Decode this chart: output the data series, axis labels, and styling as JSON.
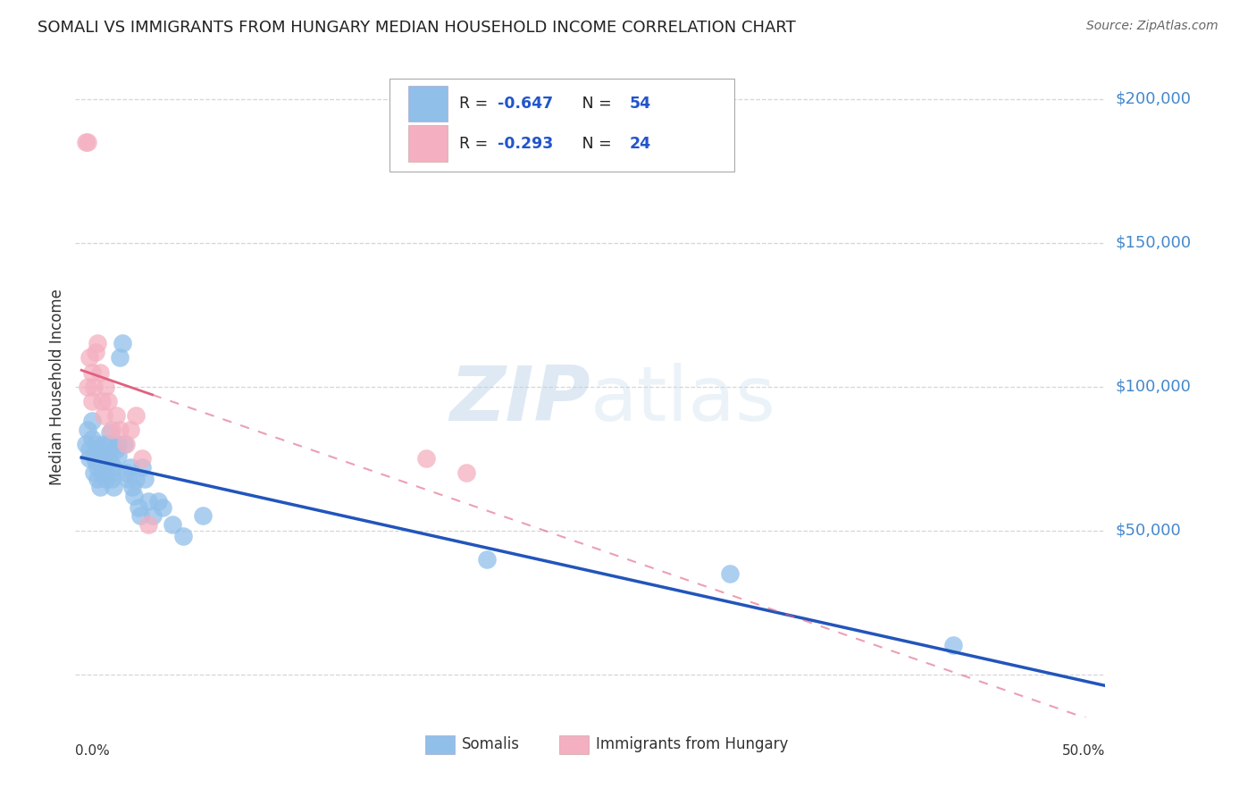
{
  "title": "SOMALI VS IMMIGRANTS FROM HUNGARY MEDIAN HOUSEHOLD INCOME CORRELATION CHART",
  "source": "Source: ZipAtlas.com",
  "ylabel": "Median Household Income",
  "yticks": [
    0,
    50000,
    100000,
    150000,
    200000
  ],
  "ytick_labels": [
    "",
    "$50,000",
    "$100,000",
    "$150,000",
    "$200,000"
  ],
  "ymax": 215000,
  "ymin": -15000,
  "xmax": 0.505,
  "xmin": -0.003,
  "legend_somali_label": "R = -0.647   N = 54",
  "legend_hungary_label": "R = -0.293   N = 24",
  "somali_color": "#90bfea",
  "hungary_color": "#f4afc0",
  "regression_blue": "#2255bb",
  "regression_pink": "#e06080",
  "watermark_zip": "ZIP",
  "watermark_atlas": "atlas",
  "background_color": "#ffffff",
  "grid_color": "#cccccc",
  "somali_x": [
    0.002,
    0.003,
    0.004,
    0.004,
    0.005,
    0.005,
    0.006,
    0.006,
    0.007,
    0.007,
    0.008,
    0.008,
    0.009,
    0.009,
    0.01,
    0.01,
    0.011,
    0.011,
    0.012,
    0.012,
    0.013,
    0.013,
    0.014,
    0.014,
    0.015,
    0.015,
    0.016,
    0.016,
    0.017,
    0.018,
    0.018,
    0.019,
    0.02,
    0.021,
    0.022,
    0.023,
    0.024,
    0.025,
    0.026,
    0.027,
    0.028,
    0.029,
    0.03,
    0.031,
    0.033,
    0.035,
    0.038,
    0.04,
    0.045,
    0.05,
    0.06,
    0.2,
    0.32,
    0.43
  ],
  "somali_y": [
    80000,
    85000,
    78000,
    75000,
    82000,
    88000,
    76000,
    70000,
    74000,
    80000,
    68000,
    72000,
    76000,
    65000,
    70000,
    78000,
    80000,
    74000,
    72000,
    68000,
    76000,
    80000,
    84000,
    74000,
    70000,
    68000,
    72000,
    65000,
    78000,
    76000,
    80000,
    110000,
    115000,
    80000,
    70000,
    68000,
    72000,
    65000,
    62000,
    68000,
    58000,
    55000,
    72000,
    68000,
    60000,
    55000,
    60000,
    58000,
    52000,
    48000,
    55000,
    40000,
    35000,
    10000
  ],
  "hungary_x": [
    0.002,
    0.003,
    0.003,
    0.004,
    0.005,
    0.005,
    0.006,
    0.007,
    0.008,
    0.009,
    0.01,
    0.011,
    0.012,
    0.013,
    0.015,
    0.017,
    0.019,
    0.022,
    0.024,
    0.027,
    0.03,
    0.033,
    0.17,
    0.19
  ],
  "hungary_y": [
    185000,
    185000,
    100000,
    110000,
    105000,
    95000,
    100000,
    112000,
    115000,
    105000,
    95000,
    90000,
    100000,
    95000,
    85000,
    90000,
    85000,
    80000,
    85000,
    90000,
    75000,
    52000,
    75000,
    70000
  ]
}
